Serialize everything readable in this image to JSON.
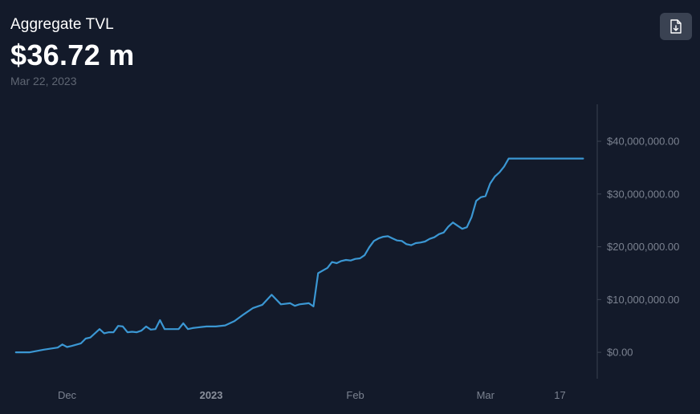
{
  "header": {
    "title": "Aggregate TVL",
    "value": "$36.72 m",
    "date": "Mar 22, 2023"
  },
  "export_button": {
    "icon": "file-download-icon"
  },
  "colors": {
    "background": "#131a2a",
    "line": "#3b97d3",
    "axis": "#3a4150",
    "tick_text": "#7b8290"
  },
  "chart_data": {
    "type": "line",
    "title": "",
    "xlabel": "",
    "ylabel": "",
    "ylim": [
      -5000000,
      47000000
    ],
    "y_ticks": [
      {
        "value": 0,
        "label": "$0.00"
      },
      {
        "value": 10000000,
        "label": "$10,000,000.00"
      },
      {
        "value": 20000000,
        "label": "$20,000,000.00"
      },
      {
        "value": 30000000,
        "label": "$30,000,000.00"
      },
      {
        "value": 40000000,
        "label": "$40,000,000.00"
      }
    ],
    "x_ticks": [
      {
        "date": "2022-12-01",
        "label": "Dec",
        "bold": false
      },
      {
        "date": "2023-01-01",
        "label": "2023",
        "bold": true
      },
      {
        "date": "2023-02-01",
        "label": "Feb",
        "bold": false
      },
      {
        "date": "2023-03-01",
        "label": "Mar",
        "bold": false
      },
      {
        "date": "2023-03-17",
        "label": "17",
        "bold": false
      }
    ],
    "x_range": [
      "2022-11-19",
      "2023-03-24"
    ],
    "grid": false,
    "legend": "none",
    "series": [
      {
        "x": [
          "2022-11-20",
          "2022-11-23",
          "2022-11-26",
          "2022-11-29",
          "2022-11-30",
          "2022-12-01",
          "2022-12-02",
          "2022-12-04",
          "2022-12-05",
          "2022-12-06",
          "2022-12-08",
          "2022-12-09",
          "2022-12-10",
          "2022-12-11",
          "2022-12-12",
          "2022-12-13",
          "2022-12-14",
          "2022-12-15",
          "2022-12-16",
          "2022-12-17",
          "2022-12-18",
          "2022-12-19",
          "2022-12-20",
          "2022-12-21",
          "2022-12-22",
          "2022-12-23",
          "2022-12-24",
          "2022-12-25",
          "2022-12-26",
          "2022-12-27",
          "2022-12-28",
          "2022-12-29",
          "2022-12-30",
          "2022-12-31",
          "2023-01-01",
          "2023-01-02",
          "2023-01-04",
          "2023-01-06",
          "2023-01-08",
          "2023-01-10",
          "2023-01-12",
          "2023-01-14",
          "2023-01-16",
          "2023-01-18",
          "2023-01-19",
          "2023-01-20",
          "2023-01-22",
          "2023-01-23",
          "2023-01-24",
          "2023-01-25",
          "2023-01-26",
          "2023-01-27",
          "2023-01-28",
          "2023-01-29",
          "2023-01-30",
          "2023-01-31",
          "2023-02-01",
          "2023-02-02",
          "2023-02-03",
          "2023-02-04",
          "2023-02-05",
          "2023-02-06",
          "2023-02-07",
          "2023-02-08",
          "2023-02-09",
          "2023-02-10",
          "2023-02-11",
          "2023-02-12",
          "2023-02-13",
          "2023-02-14",
          "2023-02-15",
          "2023-02-16",
          "2023-02-17",
          "2023-02-18",
          "2023-02-19",
          "2023-02-20",
          "2023-02-21",
          "2023-02-22",
          "2023-02-23",
          "2023-02-24",
          "2023-02-25",
          "2023-02-26",
          "2023-02-27",
          "2023-02-28",
          "2023-03-01",
          "2023-03-02",
          "2023-03-03",
          "2023-03-04",
          "2023-03-05",
          "2023-03-06",
          "2023-03-07",
          "2023-03-08",
          "2023-03-09",
          "2023-03-10",
          "2023-03-11",
          "2023-03-12",
          "2023-03-13",
          "2023-03-14",
          "2023-03-15",
          "2023-03-16",
          "2023-03-17",
          "2023-03-18",
          "2023-03-19",
          "2023-03-20",
          "2023-03-21",
          "2023-03-22"
        ],
        "y": [
          0,
          0,
          500000,
          900000,
          1500000,
          1000000,
          1200000,
          1700000,
          2600000,
          2800000,
          4400000,
          3600000,
          3800000,
          3800000,
          5000000,
          4900000,
          3800000,
          3900000,
          3800000,
          4100000,
          4900000,
          4300000,
          4400000,
          6100000,
          4400000,
          4400000,
          4400000,
          4400000,
          5500000,
          4400000,
          4600000,
          4700000,
          4800000,
          4900000,
          4900000,
          4900000,
          5100000,
          5900000,
          7200000,
          8400000,
          9000000,
          10900000,
          9100000,
          9300000,
          8800000,
          9100000,
          9300000,
          8700000,
          15000000,
          15500000,
          16000000,
          17100000,
          16900000,
          17300000,
          17500000,
          17400000,
          17700000,
          17800000,
          18400000,
          19900000,
          21100000,
          21600000,
          21900000,
          22000000,
          21600000,
          21200000,
          21100000,
          20500000,
          20300000,
          20700000,
          20800000,
          21000000,
          21500000,
          21800000,
          22400000,
          22700000,
          23800000,
          24600000,
          24000000,
          23400000,
          23700000,
          25600000,
          28700000,
          29400000,
          29600000,
          32000000,
          33300000,
          34100000,
          35200000,
          36720000,
          36720000,
          36720000,
          36720000,
          36720000,
          36720000,
          36720000,
          36720000,
          36720000,
          36720000,
          36720000,
          36720000,
          36720000,
          36720000,
          36720000,
          36720000,
          36720000
        ]
      }
    ]
  }
}
